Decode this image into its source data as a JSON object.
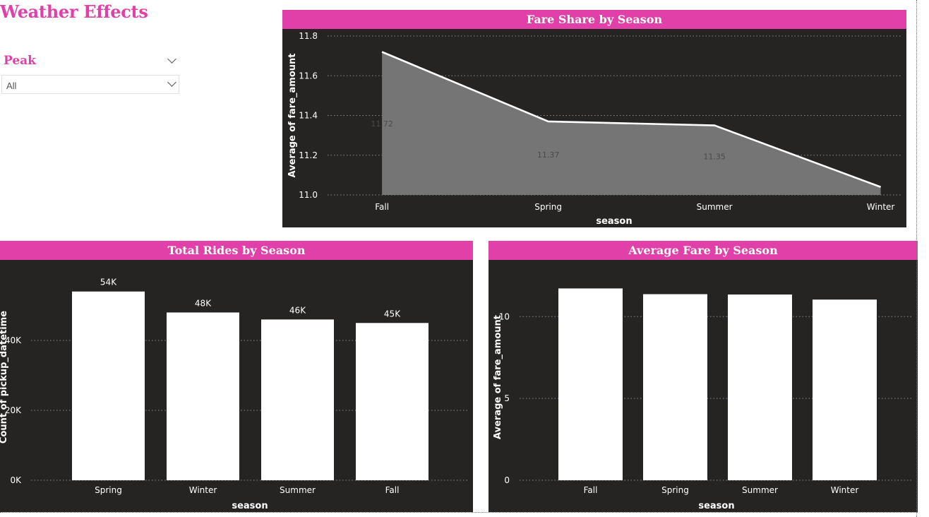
{
  "page": {
    "title": "Weather Effects"
  },
  "slicer": {
    "title": "Peak",
    "selected": "All"
  },
  "colors": {
    "accent": "#e040a8",
    "panel_bg": "#252423",
    "bar": "#ffffff",
    "area_fill": "#7a7a7a",
    "line": "#ffffff"
  },
  "chart_data": [
    {
      "id": "fare_share",
      "type": "area",
      "title": "Fare Share by Season",
      "xlabel": "season",
      "ylabel": "Average of fare_amount",
      "categories": [
        "Fall",
        "Spring",
        "Summer",
        "Winter"
      ],
      "values": [
        11.72,
        11.37,
        11.35,
        11.04
      ],
      "data_labels": [
        "11.72",
        "11.37",
        "11.35",
        ""
      ],
      "ylim": [
        11.0,
        11.8
      ],
      "yticks": [
        11.0,
        11.2,
        11.4,
        11.6,
        11.8
      ],
      "ytick_labels": [
        "11.0",
        "11.2",
        "11.4",
        "11.6",
        "11.8"
      ],
      "grid": true,
      "legend": "none"
    },
    {
      "id": "total_rides",
      "type": "bar",
      "title": "Total Rides by Season",
      "xlabel": "season",
      "ylabel": "Count of pickup_datetime",
      "categories": [
        "Spring",
        "Winter",
        "Summer",
        "Fall"
      ],
      "values": [
        54000,
        48000,
        46000,
        45000
      ],
      "data_labels": [
        "54K",
        "48K",
        "46K",
        "45K"
      ],
      "ylim": [
        0,
        59000
      ],
      "yticks": [
        0,
        20000,
        40000
      ],
      "ytick_labels": [
        "0K",
        "20K",
        "40K"
      ],
      "grid": true,
      "legend": "none"
    },
    {
      "id": "average_fare",
      "type": "bar",
      "title": "Average Fare by Season",
      "xlabel": "season",
      "ylabel": "Average of fare_amount",
      "categories": [
        "Fall",
        "Spring",
        "Summer",
        "Winter"
      ],
      "values": [
        11.72,
        11.37,
        11.35,
        11.04
      ],
      "data_labels": [
        "",
        "",
        "",
        ""
      ],
      "ylim": [
        0,
        12.6
      ],
      "yticks": [
        0,
        5,
        10
      ],
      "ytick_labels": [
        "0",
        "5",
        "10"
      ],
      "grid": true,
      "legend": "none"
    }
  ]
}
